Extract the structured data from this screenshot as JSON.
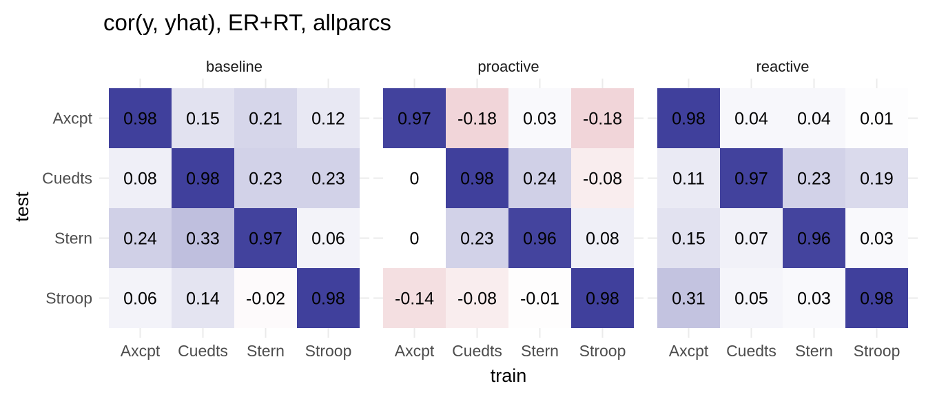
{
  "chart_data": {
    "type": "heatmap",
    "title": "cor(y, yhat), ER+RT, allparcs",
    "xlabel": "train",
    "ylabel": "test",
    "x_categories": [
      "Axcpt",
      "Cuedts",
      "Stern",
      "Stroop"
    ],
    "y_categories": [
      "Axcpt",
      "Cuedts",
      "Stern",
      "Stroop"
    ],
    "color_scale": {
      "low": "#b2182b",
      "mid": "#ffffff",
      "high": "#3c3c9a",
      "midpoint": 0,
      "limits": [
        -1,
        1
      ]
    },
    "panels": [
      {
        "name": "baseline",
        "values": [
          [
            0.98,
            0.15,
            0.21,
            0.12
          ],
          [
            0.08,
            0.98,
            0.23,
            0.23
          ],
          [
            0.24,
            0.33,
            0.97,
            0.06
          ],
          [
            0.06,
            0.14,
            -0.02,
            0.98
          ]
        ],
        "labels": [
          [
            "0.98",
            "0.15",
            "0.21",
            "0.12"
          ],
          [
            "0.08",
            "0.98",
            "0.23",
            "0.23"
          ],
          [
            "0.24",
            "0.33",
            "0.97",
            "0.06"
          ],
          [
            "0.06",
            "0.14",
            "-0.02",
            "0.98"
          ]
        ]
      },
      {
        "name": "proactive",
        "values": [
          [
            0.97,
            -0.18,
            0.03,
            -0.18
          ],
          [
            0,
            0.98,
            0.24,
            -0.08
          ],
          [
            0,
            0.23,
            0.96,
            0.08
          ],
          [
            -0.14,
            -0.08,
            -0.01,
            0.98
          ]
        ],
        "labels": [
          [
            "0.97",
            "-0.18",
            "0.03",
            "-0.18"
          ],
          [
            "0",
            "0.98",
            "0.24",
            "-0.08"
          ],
          [
            "0",
            "0.23",
            "0.96",
            "0.08"
          ],
          [
            "-0.14",
            "-0.08",
            "-0.01",
            "0.98"
          ]
        ]
      },
      {
        "name": "reactive",
        "values": [
          [
            0.98,
            0.04,
            0.04,
            0.01
          ],
          [
            0.11,
            0.97,
            0.23,
            0.19
          ],
          [
            0.15,
            0.07,
            0.96,
            0.03
          ],
          [
            0.31,
            0.05,
            0.03,
            0.98
          ]
        ],
        "labels": [
          [
            "0.98",
            "0.04",
            "0.04",
            "0.01"
          ],
          [
            "0.11",
            "0.97",
            "0.23",
            "0.19"
          ],
          [
            "0.15",
            "0.07",
            "0.96",
            "0.03"
          ],
          [
            "0.31",
            "0.05",
            "0.03",
            "0.98"
          ]
        ]
      }
    ]
  }
}
